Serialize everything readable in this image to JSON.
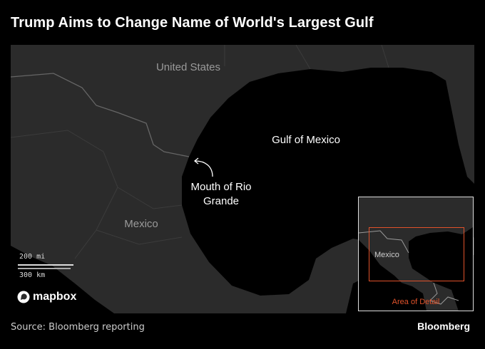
{
  "title": "Trump Aims to Change Name of World's Largest Gulf",
  "map": {
    "labels": {
      "united_states": "United States",
      "gulf": "Gulf of Mexico",
      "rio_grande": [
        "Mouth of Rio",
        "Grande"
      ],
      "mexico": "Mexico"
    },
    "scale": {
      "miles": "200 mi",
      "km": "300 km"
    },
    "attribution": "mapbox",
    "inset": {
      "label": "Mexico",
      "area_label": "Area of Detail"
    },
    "colors": {
      "land": "#2b2b2b",
      "water": "#000000",
      "borders": "#555555",
      "area_of_detail": "#e0522a"
    }
  },
  "footer": {
    "source": "Source: Bloomberg reporting",
    "brand": "Bloomberg"
  }
}
